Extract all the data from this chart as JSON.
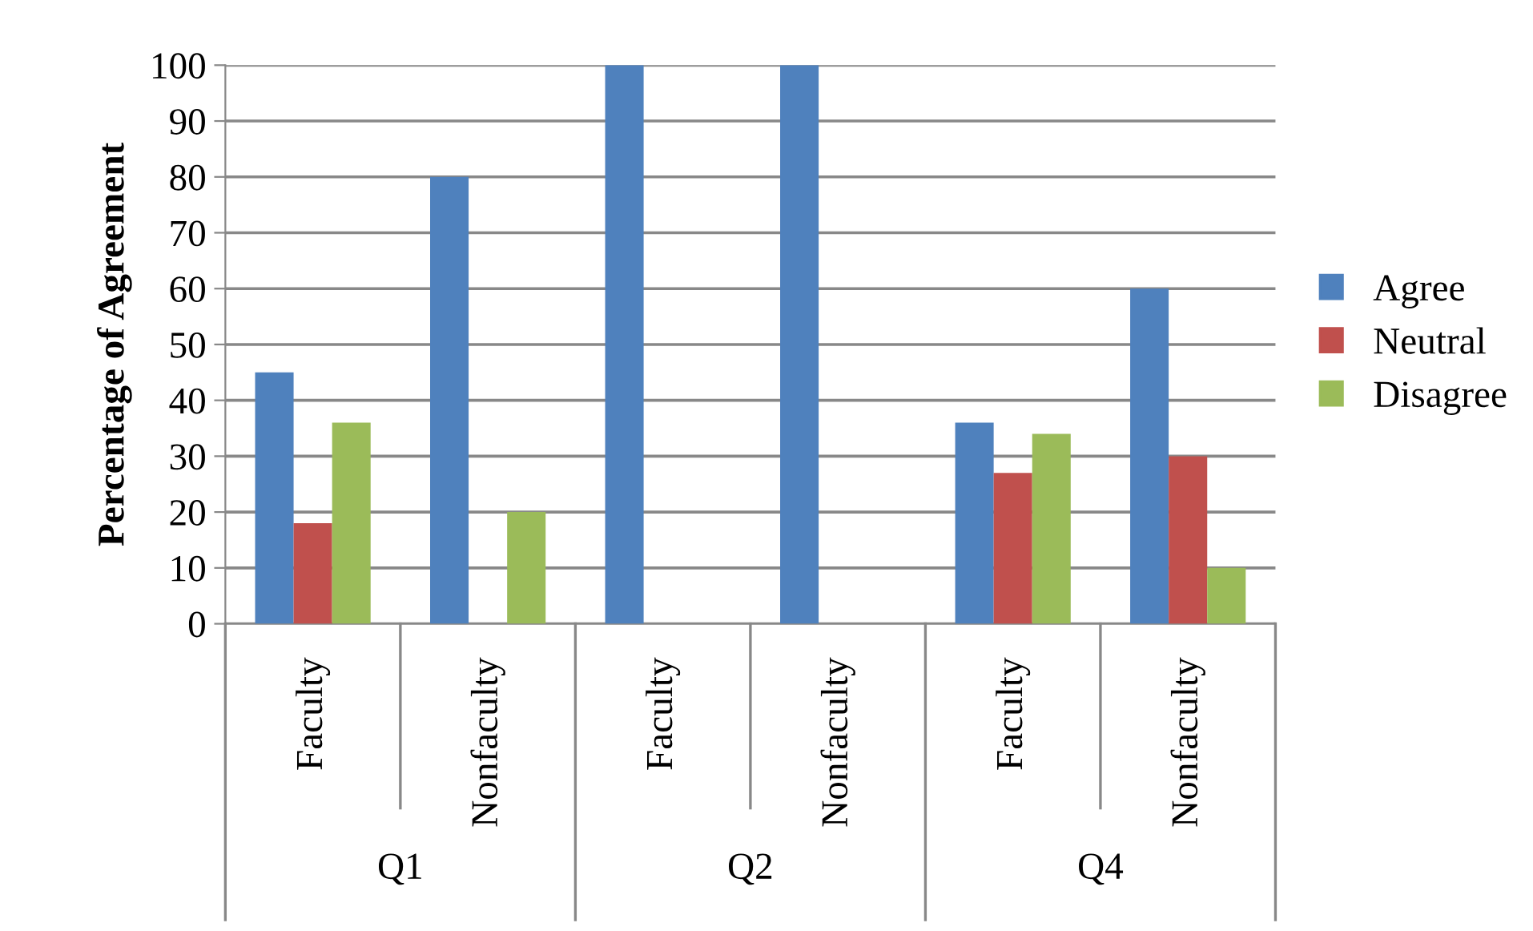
{
  "chart_data": {
    "type": "bar",
    "ylabel": "Percentage of Agreement",
    "categories": [
      "Faculty",
      "Nonfaculty",
      "Faculty",
      "Nonfaculty",
      "Faculty",
      "Nonfaculty"
    ],
    "series": [
      {
        "name": "Agree",
        "color": "#4f81bd",
        "values": [
          45,
          80,
          100,
          100,
          36,
          60
        ]
      },
      {
        "name": "Neutral",
        "color": "#c0504d",
        "values": [
          18,
          0,
          0,
          0,
          27,
          30
        ]
      },
      {
        "name": "Disagree",
        "color": "#9bbb59",
        "values": [
          36,
          20,
          0,
          0,
          34,
          10
        ]
      }
    ],
    "annotations": [
      "Q1",
      "Q2",
      "Q4"
    ],
    "ylim": [
      0,
      100
    ],
    "yticks": [
      0,
      10,
      20,
      30,
      40,
      50,
      60,
      70,
      80,
      90,
      100
    ],
    "grid": "y",
    "legend": "right"
  }
}
